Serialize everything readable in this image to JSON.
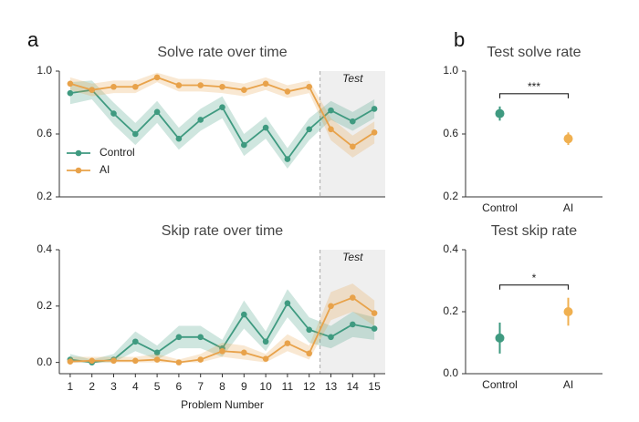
{
  "chart_data": [
    {
      "type": "line",
      "panel_label": "a",
      "title": "Solve rate over time",
      "x": [
        1,
        2,
        3,
        4,
        5,
        6,
        7,
        8,
        9,
        10,
        11,
        12,
        13,
        14,
        15
      ],
      "xlim": [
        0.5,
        15.5
      ],
      "ylim": [
        0.2,
        1.0
      ],
      "yticks": [
        0.2,
        0.6,
        {
          "value": 1,
          "label": "1.0"
        }
      ],
      "legend": "lower left",
      "shaded_span": {
        "xmin": 12.5,
        "xmax": 15.5,
        "label": "Test"
      },
      "series": [
        {
          "name": "Control",
          "color": "#3f9a80",
          "values": [
            0.86,
            0.88,
            0.73,
            0.6,
            0.74,
            0.57,
            0.69,
            0.77,
            0.53,
            0.64,
            0.44,
            0.63,
            0.75,
            0.68,
            0.76
          ],
          "lower": [
            0.79,
            0.82,
            0.66,
            0.53,
            0.67,
            0.5,
            0.62,
            0.7,
            0.46,
            0.57,
            0.38,
            0.56,
            0.69,
            0.62,
            0.7
          ],
          "upper": [
            0.93,
            0.94,
            0.8,
            0.67,
            0.81,
            0.64,
            0.76,
            0.84,
            0.6,
            0.71,
            0.51,
            0.7,
            0.81,
            0.74,
            0.82
          ]
        },
        {
          "name": "AI",
          "color": "#e8a24a",
          "values": [
            0.92,
            0.88,
            0.9,
            0.9,
            0.96,
            0.91,
            0.91,
            0.9,
            0.88,
            0.92,
            0.87,
            0.9,
            0.63,
            0.52,
            0.61
          ],
          "lower": [
            0.88,
            0.84,
            0.86,
            0.86,
            0.93,
            0.87,
            0.87,
            0.86,
            0.84,
            0.88,
            0.83,
            0.86,
            0.56,
            0.45,
            0.54
          ],
          "upper": [
            0.96,
            0.92,
            0.94,
            0.94,
            0.99,
            0.95,
            0.95,
            0.94,
            0.92,
            0.96,
            0.91,
            0.94,
            0.7,
            0.59,
            0.68
          ]
        }
      ]
    },
    {
      "type": "line",
      "title": "Skip rate over time",
      "xlabel": "Problem Number",
      "x": [
        1,
        2,
        3,
        4,
        5,
        6,
        7,
        8,
        9,
        10,
        11,
        12,
        13,
        14,
        15
      ],
      "xticks": [
        1,
        2,
        3,
        4,
        5,
        6,
        7,
        8,
        9,
        10,
        11,
        12,
        13,
        14,
        15
      ],
      "xlim": [
        0.5,
        15.5
      ],
      "ylim": [
        -0.04,
        0.4
      ],
      "yticks": [
        {
          "value": 0,
          "label": "0.0"
        },
        0.2,
        0.4
      ],
      "shaded_span": {
        "xmin": 12.5,
        "xmax": 15.5,
        "label": "Test"
      },
      "series": [
        {
          "name": "Control",
          "color": "#3f9a80",
          "values": [
            0.01,
            0.0,
            0.01,
            0.074,
            0.035,
            0.09,
            0.09,
            0.05,
            0.17,
            0.074,
            0.21,
            0.116,
            0.09,
            0.135,
            0.12
          ],
          "lower": [
            0,
            0,
            0,
            0.04,
            0.01,
            0.05,
            0.05,
            0.02,
            0.12,
            0.04,
            0.16,
            0.07,
            0.05,
            0.09,
            0.08
          ],
          "upper": [
            0.03,
            0.01,
            0.03,
            0.11,
            0.06,
            0.13,
            0.13,
            0.08,
            0.22,
            0.11,
            0.26,
            0.16,
            0.13,
            0.18,
            0.16
          ]
        },
        {
          "name": "AI",
          "color": "#e8a24a",
          "values": [
            0.003,
            0.006,
            0.006,
            0.006,
            0.01,
            0.0,
            0.01,
            0.04,
            0.035,
            0.013,
            0.068,
            0.032,
            0.2,
            0.23,
            0.175
          ],
          "lower": [
            0,
            0,
            0,
            0,
            0,
            0,
            0,
            0.02,
            0.01,
            0,
            0.04,
            0.01,
            0.15,
            0.18,
            0.13
          ],
          "upper": [
            0.02,
            0.02,
            0.02,
            0.02,
            0.03,
            0.01,
            0.03,
            0.07,
            0.06,
            0.03,
            0.1,
            0.06,
            0.25,
            0.28,
            0.22
          ]
        }
      ]
    },
    {
      "type": "errorbar",
      "panel_label": "b",
      "title": "Test solve rate",
      "categories": [
        "Control",
        "AI"
      ],
      "values": [
        0.73,
        0.57
      ],
      "errors": [
        0.045,
        0.04
      ],
      "colors": [
        "#3f9a80",
        "#f0b050"
      ],
      "ylim": [
        0.2,
        1.0
      ],
      "yticks": [
        0.2,
        0.6,
        {
          "value": 1,
          "label": "1.0"
        }
      ],
      "significance": "***"
    },
    {
      "type": "errorbar",
      "title": "Test skip rate",
      "categories": [
        "Control",
        "AI"
      ],
      "values": [
        0.115,
        0.2
      ],
      "errors": [
        0.05,
        0.045
      ],
      "colors": [
        "#3f9a80",
        "#f0b050"
      ],
      "ylim": [
        0,
        0.4
      ],
      "yticks": [
        {
          "value": 0,
          "label": "0.0"
        },
        0.2,
        0.4
      ],
      "significance": "*"
    }
  ]
}
